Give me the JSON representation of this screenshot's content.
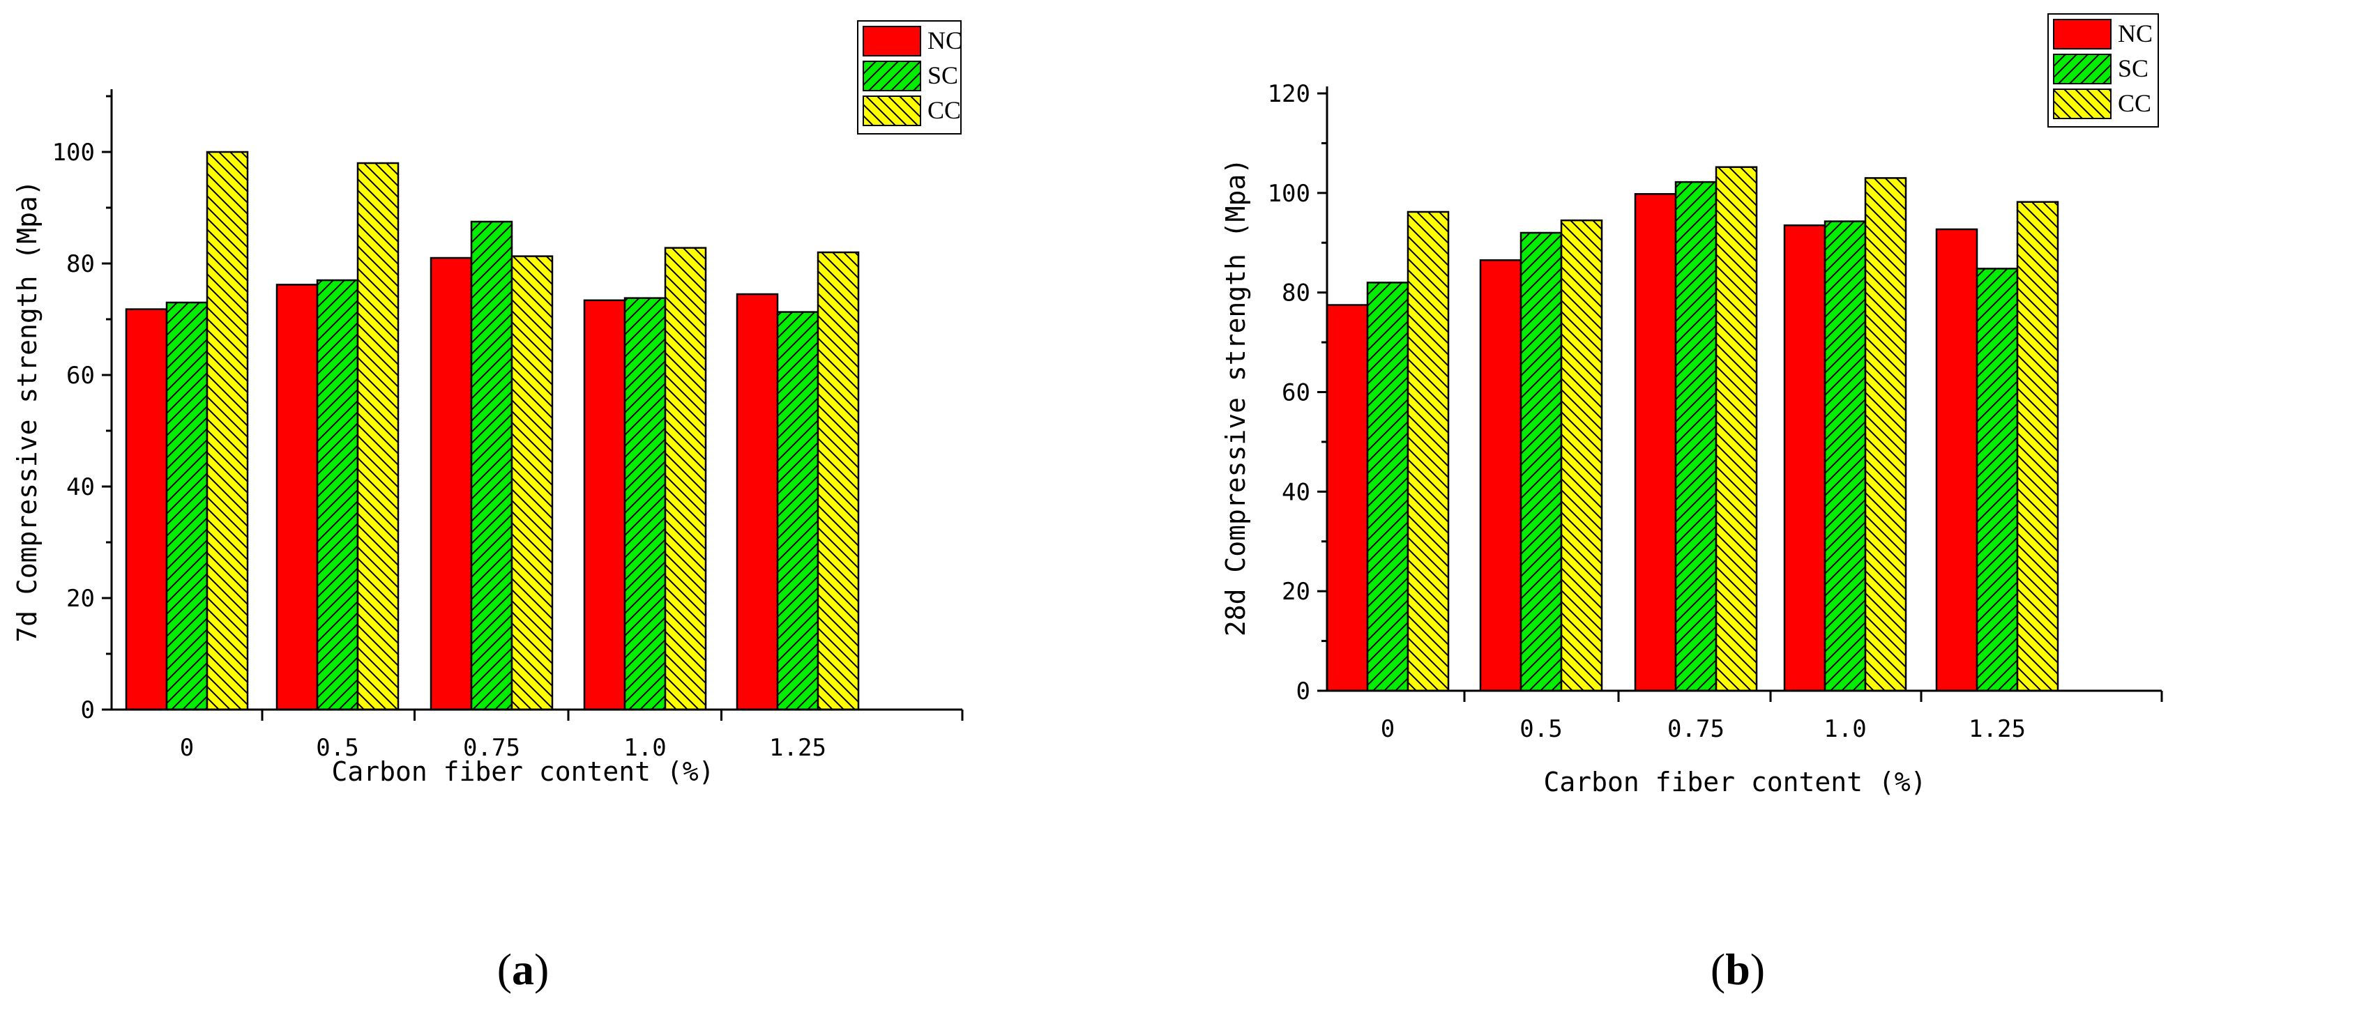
{
  "colors": {
    "NC": "#ff0000",
    "SC": "#00ee00",
    "CC": "#ffff00",
    "hatch": "#000000"
  },
  "chart_data": [
    {
      "type": "bar",
      "panel_label": "a",
      "categories": [
        "0",
        "0.5",
        "0.75",
        "1.0",
        "1.25"
      ],
      "series": [
        {
          "name": "NC",
          "values": [
            71.8,
            76.2,
            81.0,
            73.4,
            74.5
          ],
          "pattern": "solid"
        },
        {
          "name": "SC",
          "values": [
            73.0,
            77.0,
            87.5,
            73.8,
            71.3
          ],
          "pattern": "hatch-up"
        },
        {
          "name": "CC",
          "values": [
            100.0,
            98.0,
            81.3,
            82.8,
            82.0
          ],
          "pattern": "hatch-down"
        }
      ],
      "xlabel": "Carbon fiber content (%)",
      "ylabel": "7d Compressive strength (Mpa)",
      "ylim": [
        0,
        110
      ],
      "yticks": [
        0,
        20,
        40,
        60,
        80,
        100
      ],
      "legend_position": "top-right"
    },
    {
      "type": "bar",
      "panel_label": "b",
      "categories": [
        "0",
        "0.5",
        "0.75",
        "1.0",
        "1.25"
      ],
      "series": [
        {
          "name": "NC",
          "values": [
            77.5,
            86.5,
            99.8,
            93.5,
            92.7
          ],
          "pattern": "solid"
        },
        {
          "name": "SC",
          "values": [
            82.0,
            92.0,
            102.2,
            94.3,
            84.8
          ],
          "pattern": "hatch-up"
        },
        {
          "name": "CC",
          "values": [
            96.2,
            94.5,
            105.2,
            103.0,
            98.2
          ],
          "pattern": "hatch-down"
        }
      ],
      "xlabel": "Carbon fiber content (%)",
      "ylabel": "28d Compressive strength (Mpa)",
      "ylim": [
        0,
        120
      ],
      "yticks": [
        0,
        20,
        40,
        60,
        80,
        100,
        120
      ],
      "legend_position": "top-right"
    }
  ]
}
